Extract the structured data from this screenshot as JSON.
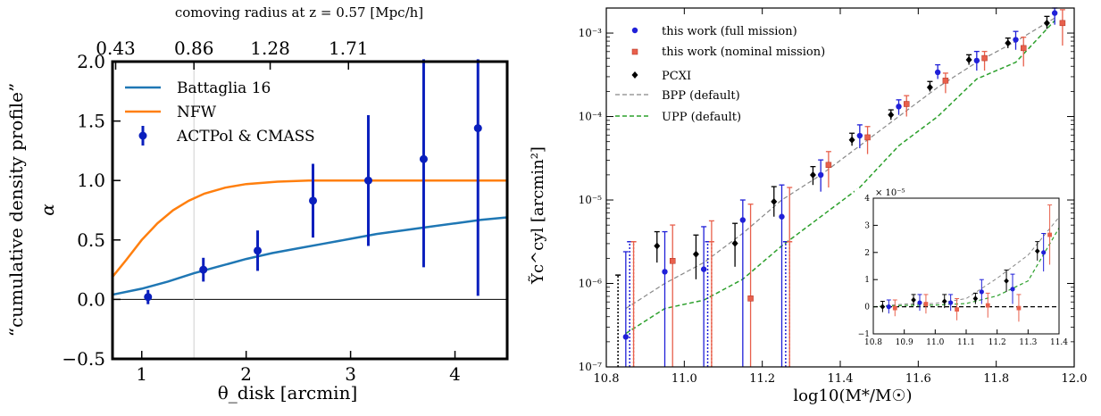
{
  "chart_data": [
    {
      "type": "line",
      "xlabel": "θ_disk [arcmin]",
      "ylabel_line1": "“cumulative density profile”",
      "ylabel_line2": "α",
      "top_axis_label": "comoving radius at z = 0.57 [Mpc/h]",
      "xlim": [
        0.72,
        4.5
      ],
      "ylim": [
        -0.5,
        2.0
      ],
      "x_ticks": [
        1,
        2,
        3,
        4
      ],
      "x_tick_labels": [
        "1",
        "2",
        "3",
        "4"
      ],
      "y_ticks": [
        -0.5,
        0.0,
        0.5,
        1.0,
        1.5,
        2.0
      ],
      "y_tick_labels": [
        "−0.5",
        "0.0",
        "0.5",
        "1.0",
        "1.5",
        "2.0"
      ],
      "top_ticks": [
        0.43,
        0.86,
        1.28,
        1.71
      ],
      "top_tick_labels": [
        "0.43",
        "0.86",
        "1.28",
        "1.71"
      ],
      "top_tick_theta": [
        0.75,
        1.5,
        2.23,
        2.98
      ],
      "vline_x": 1.5,
      "hline_y": 0.0,
      "legend_position": "top-left",
      "series": [
        {
          "name": "Battaglia 16",
          "kind": "line",
          "color": "#1f77b4",
          "x": [
            0.72,
            1.0,
            1.25,
            1.5,
            1.75,
            2.0,
            2.25,
            2.5,
            2.75,
            3.0,
            3.25,
            3.5,
            3.75,
            4.0,
            4.25,
            4.5
          ],
          "y": [
            0.04,
            0.09,
            0.15,
            0.22,
            0.28,
            0.34,
            0.39,
            0.43,
            0.47,
            0.51,
            0.55,
            0.58,
            0.61,
            0.64,
            0.67,
            0.69
          ]
        },
        {
          "name": "NFW",
          "kind": "line",
          "color": "#ff7f0e",
          "x": [
            0.72,
            0.85,
            1.0,
            1.15,
            1.3,
            1.45,
            1.6,
            1.8,
            2.0,
            2.3,
            2.6,
            3.0,
            3.5,
            4.0,
            4.5
          ],
          "y": [
            0.19,
            0.33,
            0.5,
            0.64,
            0.75,
            0.83,
            0.89,
            0.94,
            0.97,
            0.99,
            1.0,
            1.0,
            1.0,
            1.0,
            1.0
          ]
        },
        {
          "name": "ACTPol & CMASS",
          "kind": "errorbar",
          "color": "#0a1fbd",
          "x": [
            1.06,
            1.59,
            2.11,
            2.64,
            3.17,
            3.7,
            4.22
          ],
          "y": [
            0.02,
            0.25,
            0.41,
            0.83,
            1.0,
            1.18,
            1.44
          ],
          "yerr": [
            0.06,
            0.1,
            0.17,
            0.31,
            0.55,
            0.91,
            1.41
          ]
        }
      ]
    },
    {
      "type": "scatter",
      "xlabel": "log10(M*/M☉)",
      "ylabel": "Ỹc^cyl [arcmin²]",
      "yscale": "log",
      "xlim": [
        10.8,
        12.0
      ],
      "ylim_log10": [
        -7,
        -2.7
      ],
      "x_ticks": [
        10.8,
        11.0,
        11.2,
        11.4,
        11.6,
        11.8,
        12.0
      ],
      "x_tick_labels": [
        "10.8",
        "11.0",
        "11.2",
        "11.4",
        "11.6",
        "11.8",
        "12.0"
      ],
      "y_ticks_log10": [
        -7,
        -6,
        -5,
        -4,
        -3
      ],
      "y_tick_labels": [
        "10⁻⁷",
        "10⁻⁶",
        "10⁻⁵",
        "10⁻⁴",
        "10⁻³"
      ],
      "legend_position": "top-left",
      "series": [
        {
          "name": "this work (full mission)",
          "kind": "errorbar",
          "color": "#2020d8",
          "marker": "circle",
          "x": [
            10.85,
            10.95,
            11.05,
            11.15,
            11.25,
            11.35,
            11.45,
            11.55,
            11.65,
            11.75,
            11.85,
            11.95
          ],
          "log10_y": [
            -6.64,
            -5.86,
            -5.83,
            -5.24,
            -5.2,
            -4.7,
            -4.23,
            -3.88,
            -3.47,
            -3.33,
            -3.08,
            -2.76
          ],
          "log10_lo": [
            -7.0,
            -7.0,
            -7.0,
            -7.0,
            -7.0,
            -4.9,
            -4.38,
            -3.98,
            -3.55,
            -3.45,
            -3.2,
            -2.9
          ],
          "log10_hi": [
            -5.62,
            -5.38,
            -5.32,
            -5.0,
            -4.82,
            -4.52,
            -4.1,
            -3.8,
            -3.38,
            -3.22,
            -2.98,
            -2.65
          ],
          "upper_limit_x": [
            10.86,
            11.06,
            11.26
          ]
        },
        {
          "name": "this work (nominal mission)",
          "kind": "errorbar",
          "color": "#e8604c",
          "marker": "square",
          "x": [
            10.87,
            10.97,
            11.07,
            11.17,
            11.27,
            11.37,
            11.47,
            11.57,
            11.67,
            11.77,
            11.87,
            11.97
          ],
          "log10_y": [
            -7.1,
            -5.73,
            -7.1,
            -6.18,
            -7.1,
            -4.58,
            -4.25,
            -3.85,
            -3.57,
            -3.3,
            -3.18,
            -2.88
          ],
          "log10_lo": [
            -7.0,
            -7.0,
            -7.0,
            -7.0,
            -7.0,
            -4.85,
            -4.45,
            -4.0,
            -3.72,
            -3.45,
            -3.4,
            -3.15
          ],
          "log10_hi": [
            -5.5,
            -5.3,
            -5.25,
            -5.05,
            -4.85,
            -4.42,
            -4.12,
            -3.75,
            -3.48,
            -3.22,
            -3.05,
            -2.72
          ],
          "upper_limit_x": [
            10.87,
            11.07,
            11.27
          ]
        },
        {
          "name": "PCXI",
          "kind": "errorbar",
          "color": "#000000",
          "marker": "diamond",
          "x": [
            10.93,
            11.03,
            11.13,
            11.23,
            11.33,
            11.43,
            11.53,
            11.63,
            11.73,
            11.83,
            11.93
          ],
          "log10_y": [
            -5.55,
            -5.65,
            -5.52,
            -5.02,
            -4.7,
            -4.28,
            -3.98,
            -3.65,
            -3.32,
            -3.12,
            -2.88
          ],
          "log10_lo": [
            -5.75,
            -5.95,
            -5.8,
            -5.2,
            -4.82,
            -4.35,
            -4.04,
            -3.7,
            -3.38,
            -3.18,
            -2.95
          ],
          "log10_hi": [
            -5.38,
            -5.42,
            -5.28,
            -4.84,
            -4.6,
            -4.2,
            -3.92,
            -3.58,
            -3.26,
            -3.06,
            -2.8
          ],
          "upper_limit_x": [
            10.83
          ]
        },
        {
          "name": "BPP (default)",
          "kind": "line",
          "color": "#888888",
          "dash": "dashed",
          "x": [
            10.85,
            10.95,
            11.05,
            11.15,
            11.25,
            11.35,
            11.45,
            11.55,
            11.65,
            11.75,
            11.85,
            11.95
          ],
          "log10_y": [
            -6.3,
            -6.0,
            -5.75,
            -5.4,
            -5.0,
            -4.7,
            -4.35,
            -4.0,
            -3.65,
            -3.35,
            -3.1,
            -2.82
          ]
        },
        {
          "name": "UPP (default)",
          "kind": "line",
          "color": "#2ca02c",
          "dash": "dashed",
          "x": [
            10.85,
            10.95,
            11.05,
            11.15,
            11.25,
            11.35,
            11.45,
            11.55,
            11.65,
            11.75,
            11.85,
            11.95
          ],
          "log10_y": [
            -6.6,
            -6.3,
            -6.2,
            -5.95,
            -5.55,
            -5.2,
            -4.85,
            -4.35,
            -4.0,
            -3.55,
            -3.35,
            -2.85
          ]
        }
      ],
      "inset": {
        "y_multiplier_label": "× 10⁻⁵",
        "xlim": [
          10.8,
          11.4
        ],
        "ylim": [
          -1,
          4
        ],
        "x_ticks": [
          10.8,
          10.9,
          11.0,
          11.1,
          11.2,
          11.3,
          11.4
        ],
        "x_tick_labels": [
          "10.8",
          "10.9",
          "11.0",
          "11.1",
          "11.2",
          "11.3",
          "11.4"
        ],
        "y_ticks": [
          -1,
          0,
          1,
          2,
          3,
          4
        ],
        "y_tick_labels": [
          "−1",
          "0",
          "1",
          "2",
          "3",
          "4"
        ],
        "full_x": [
          10.85,
          10.95,
          11.05,
          11.15,
          11.25,
          11.35
        ],
        "full_y": [
          0.0,
          0.15,
          0.15,
          0.55,
          0.65,
          2.0
        ],
        "full_err": [
          0.25,
          0.3,
          0.3,
          0.45,
          0.55,
          0.7
        ],
        "nominal_x": [
          10.87,
          10.97,
          11.07,
          11.17,
          11.27,
          11.37
        ],
        "nominal_y": [
          -0.05,
          0.1,
          -0.1,
          0.05,
          -0.05,
          2.65
        ],
        "nominal_err": [
          0.3,
          0.35,
          0.4,
          0.45,
          0.5,
          1.1
        ],
        "pcxi_x": [
          10.83,
          10.93,
          11.03,
          11.13,
          11.23,
          11.33
        ],
        "pcxi_y": [
          0.0,
          0.25,
          0.2,
          0.3,
          0.95,
          2.05
        ],
        "pcxi_err": [
          0.2,
          0.2,
          0.25,
          0.2,
          0.4,
          0.35
        ],
        "bpp_y": [
          0.0,
          0.1,
          0.12,
          0.3,
          1.05,
          1.9,
          3.3
        ],
        "upp_y": [
          0.0,
          0.05,
          0.06,
          0.12,
          0.4,
          0.95,
          2.9
        ],
        "curve_x": [
          10.8,
          10.9,
          11.0,
          11.1,
          11.2,
          11.3,
          11.4
        ]
      }
    }
  ]
}
